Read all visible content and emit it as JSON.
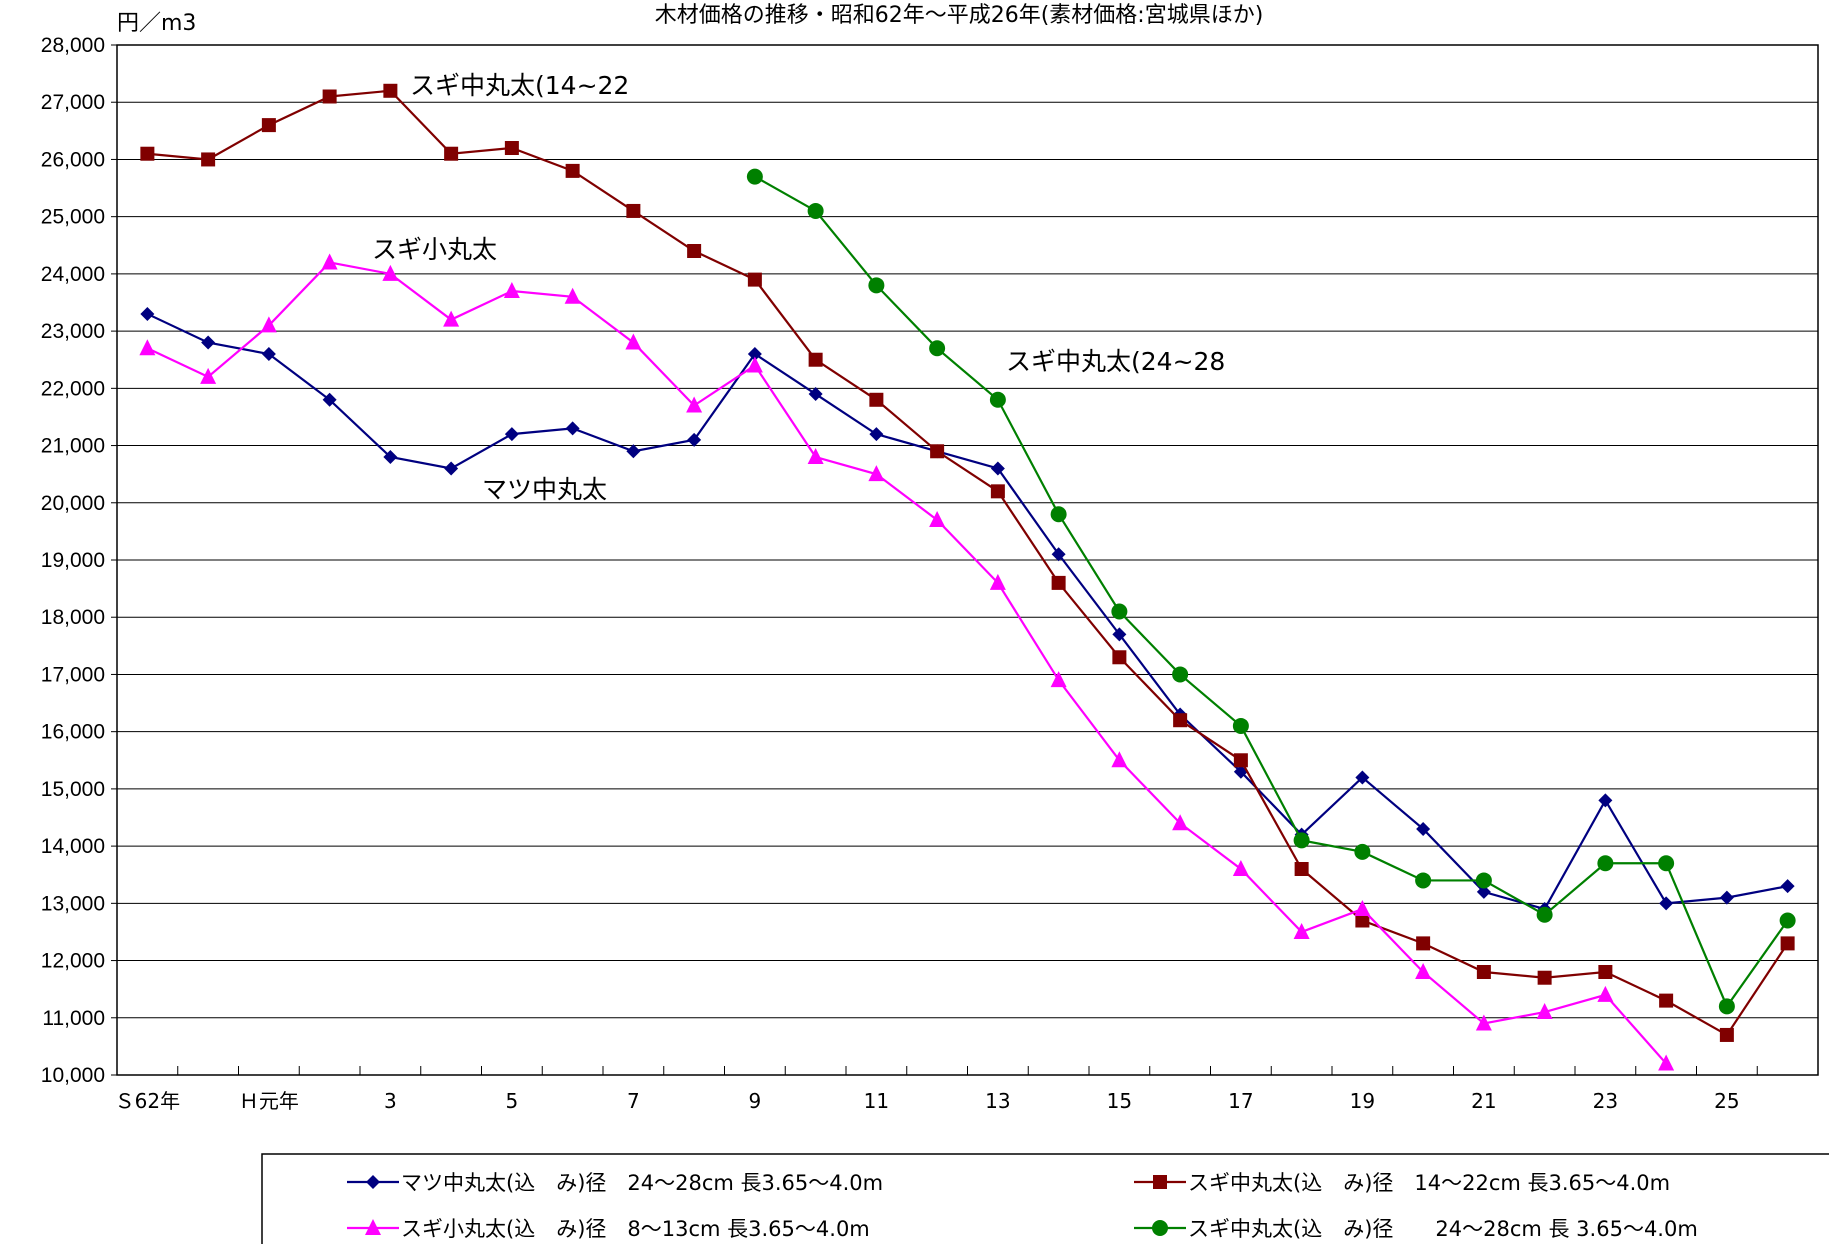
{
  "chart_data": {
    "type": "line",
    "title": "木材価格の推移・昭和62年～平成26年(素材価格:宮城県ほか)",
    "ylabel": "円／m3",
    "ylim": [
      10000,
      28000
    ],
    "yticks": [
      "10,000",
      "11,000",
      "12,000",
      "13,000",
      "14,000",
      "15,000",
      "16,000",
      "17,000",
      "18,000",
      "19,000",
      "20,000",
      "21,000",
      "22,000",
      "23,000",
      "24,000",
      "25,000",
      "26,000",
      "27,000",
      "28,000"
    ],
    "x_tick_labels": [
      "Ｓ62年",
      "",
      "Ｈ元年",
      "",
      "3",
      "",
      "5",
      "",
      "7",
      "",
      "9",
      "",
      "11",
      "",
      "13",
      "",
      "15",
      "",
      "17",
      "",
      "19",
      "",
      "21",
      "",
      "23",
      "",
      "25",
      ""
    ],
    "grid": true,
    "legend_position": "bottom",
    "series": [
      {
        "name": "マツ中丸太(込　み)径　24～28cm 長3.65～4.0m",
        "color": "#000080",
        "marker": "diamond",
        "values": [
          23300,
          22800,
          22600,
          21800,
          20800,
          20600,
          21200,
          21300,
          20900,
          21100,
          22600,
          21900,
          21200,
          20900,
          20600,
          19100,
          17700,
          16300,
          15300,
          14200,
          15200,
          14300,
          13200,
          12900,
          14800,
          13000,
          13100,
          13300
        ]
      },
      {
        "name": "スギ中丸太(込　み)径　14～22cm 長3.65～4.0m",
        "color": "#800000",
        "marker": "square",
        "values": [
          26100,
          26000,
          26600,
          27100,
          27200,
          26100,
          26200,
          25800,
          25100,
          24400,
          23900,
          22500,
          21800,
          20900,
          20200,
          18600,
          17300,
          16200,
          15500,
          13600,
          12700,
          12300,
          11800,
          11700,
          11800,
          11300,
          10700,
          12300
        ]
      },
      {
        "name": "スギ小丸太(込　み)径　8～13cm 長3.65～4.0m",
        "color": "#ff00ff",
        "marker": "triangle",
        "values": [
          22700,
          22200,
          23100,
          24200,
          24000,
          23200,
          23700,
          23600,
          22800,
          21700,
          22400,
          20800,
          20500,
          19700,
          18600,
          16900,
          15500,
          14400,
          13600,
          12500,
          12900,
          11800,
          10900,
          11100,
          11400,
          10200,
          null,
          null
        ]
      },
      {
        "name": "スギ中丸太(込　み)径　　24～28cm 長 3.65～4.0m",
        "color": "#008000",
        "marker": "circle",
        "values": [
          null,
          null,
          null,
          null,
          null,
          null,
          null,
          null,
          null,
          null,
          25700,
          25100,
          23800,
          22700,
          21800,
          19800,
          18100,
          17000,
          16100,
          14100,
          13900,
          13400,
          13400,
          12800,
          13700,
          13700,
          11200,
          12700
        ]
      }
    ],
    "annotations": [
      {
        "text": "スギ中丸太(14~22",
        "series": 1
      },
      {
        "text": "スギ小丸太",
        "series": 2
      },
      {
        "text": "マツ中丸太",
        "series": 0
      },
      {
        "text": "スギ中丸太(24~28",
        "series": 3
      }
    ]
  }
}
